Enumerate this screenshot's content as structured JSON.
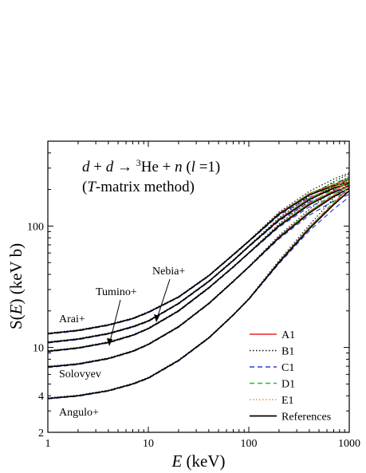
{
  "chart_data": {
    "type": "line",
    "title_line1": {
      "a": "d",
      "plus1": " + ",
      "b": "d",
      "arrow": " → ",
      "sup": "3",
      "he": "He",
      "plus2": " + ",
      "n": "n",
      "open": "  (",
      "l": "l",
      "eq": " =1)"
    },
    "title_line2": {
      "open": "(",
      "T": "T",
      "rest": "-matrix method)"
    },
    "xlabel": {
      "var": "E",
      "unit": " (keV)"
    },
    "ylabel": {
      "var_prefix": "S(",
      "var": "E",
      "var_suffix": ")",
      "unit": " (keV b)"
    },
    "x_scale": "log",
    "y_scale": "log",
    "xlim": [
      1,
      1000
    ],
    "ylim": [
      2,
      500
    ],
    "x_ticks": [
      {
        "value": 1,
        "label": "1"
      },
      {
        "value": 10,
        "label": "10"
      },
      {
        "value": 100,
        "label": "100"
      },
      {
        "value": 1000,
        "label": "1000"
      }
    ],
    "y_ticks": [
      {
        "value": 2,
        "label": "2"
      },
      {
        "value": 4,
        "label": "4"
      },
      {
        "value": 10,
        "label": "10"
      },
      {
        "value": 100,
        "label": "100"
      }
    ],
    "grid": false,
    "legend_position": "bottom-right",
    "legend": [
      {
        "label": "A1",
        "color": "#e8262a",
        "dash": "solid"
      },
      {
        "label": "B1",
        "color": "#111111",
        "dash": "dotted"
      },
      {
        "label": "C1",
        "color": "#2a3fd6",
        "dash": "dashed"
      },
      {
        "label": "D1",
        "color": "#20c020",
        "dash": "dashed"
      },
      {
        "label": "E1",
        "color": "#e89a20",
        "dash": "dotted"
      },
      {
        "label": "References",
        "color": "#000000",
        "dash": "solid"
      }
    ],
    "reference_curves": [
      {
        "name": "Arai+",
        "x": [
          1,
          2,
          4,
          7,
          10,
          20,
          40,
          70,
          100,
          200,
          400,
          700,
          1000
        ],
        "y": [
          13,
          13.8,
          15.3,
          17.3,
          19.5,
          26,
          39,
          58,
          75,
          125,
          180,
          215,
          230
        ]
      },
      {
        "name": "Nebia+",
        "x": [
          1,
          2,
          4,
          7,
          10,
          20,
          40,
          70,
          100,
          200,
          400,
          700,
          1000
        ],
        "y": [
          11,
          11.7,
          13,
          14.8,
          16.5,
          23,
          35,
          52,
          68,
          112,
          165,
          205,
          225
        ]
      },
      {
        "name": "Tumino+",
        "x": [
          1,
          2,
          4,
          7,
          10,
          20,
          40,
          70,
          100,
          200,
          400,
          700,
          1000
        ],
        "y": [
          9.3,
          9.9,
          11,
          12.6,
          14.3,
          20,
          31,
          46,
          60,
          100,
          150,
          190,
          215
        ]
      },
      {
        "name": "Solovyev",
        "x": [
          1,
          2,
          4,
          7,
          10,
          20,
          40,
          70,
          100,
          200,
          400,
          700,
          1000
        ],
        "y": [
          6.9,
          7.3,
          8.1,
          9.3,
          10.6,
          14.8,
          23,
          35,
          46,
          80,
          128,
          175,
          205
        ]
      },
      {
        "name": "Angulo+",
        "x": [
          1,
          2,
          4,
          7,
          10,
          20,
          40,
          70,
          100,
          200,
          400,
          700,
          1000
        ],
        "y": [
          3.8,
          4.0,
          4.4,
          5.0,
          5.6,
          7.8,
          12,
          18.5,
          25,
          50,
          95,
          150,
          195
        ]
      }
    ],
    "model_spread_at_high_energy": {
      "A1": [
        1.0,
        1.02,
        1.03,
        1.02,
        1.08
      ],
      "B1": [
        1.0,
        1.03,
        1.06,
        1.12,
        1.18
      ],
      "C1": [
        1.0,
        0.99,
        0.97,
        0.93,
        0.9
      ],
      "D1": [
        1.0,
        1.01,
        1.02,
        1.05,
        1.08
      ],
      "E1": [
        1.0,
        1.01,
        1.01,
        1.03,
        1.04
      ]
    },
    "spread_x": [
      100,
      200,
      400,
      700,
      1000
    ],
    "curve_labels": [
      {
        "text": "Arai+",
        "series": "Arai+"
      },
      {
        "text": "Tumino+",
        "series": "Tumino+"
      },
      {
        "text": "Nebia+",
        "series": "Nebia+"
      },
      {
        "text": "Solovyev",
        "series": "Solovyev"
      },
      {
        "text": "Angulo+",
        "series": "Angulo+"
      }
    ]
  }
}
